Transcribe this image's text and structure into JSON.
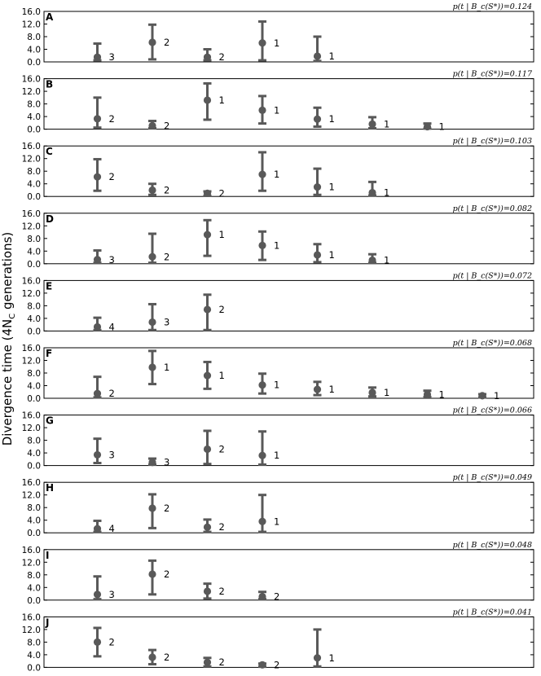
{
  "chart_data": {
    "type": "scatter",
    "ylabel": "Divergence time (4N_C generations)",
    "ylim": [
      0,
      16
    ],
    "yticks": [
      "0.0",
      "4.0",
      "8.0",
      "12.0",
      "16.0"
    ],
    "grid": false,
    "panels": [
      {
        "letter": "A",
        "label": "p(t | B_c(S*))=0.124",
        "points": [
          {
            "x": 1,
            "y": 1.5,
            "lo": 0.5,
            "hi": 5.8,
            "count": "3"
          },
          {
            "x": 2,
            "y": 6.2,
            "lo": 0.8,
            "hi": 11.8,
            "count": "2"
          },
          {
            "x": 3,
            "y": 1.5,
            "lo": 0.5,
            "hi": 4.0,
            "count": "2"
          },
          {
            "x": 4,
            "y": 6.0,
            "lo": 0.5,
            "hi": 12.8,
            "count": "1"
          },
          {
            "x": 5,
            "y": 1.8,
            "lo": 0.3,
            "hi": 8.0,
            "count": "1"
          }
        ]
      },
      {
        "letter": "B",
        "label": "p(t | B_c(S*))=0.117",
        "points": [
          {
            "x": 1,
            "y": 3.3,
            "lo": 0.5,
            "hi": 10.0,
            "count": "2"
          },
          {
            "x": 2,
            "y": 1.1,
            "lo": 0.3,
            "hi": 2.6,
            "count": "2"
          },
          {
            "x": 3,
            "y": 9.2,
            "lo": 3.0,
            "hi": 14.5,
            "count": "1"
          },
          {
            "x": 4,
            "y": 6.0,
            "lo": 1.8,
            "hi": 10.5,
            "count": "1"
          },
          {
            "x": 5,
            "y": 3.2,
            "lo": 0.8,
            "hi": 6.8,
            "count": "1"
          },
          {
            "x": 6,
            "y": 1.6,
            "lo": 0.3,
            "hi": 3.8,
            "count": "1"
          },
          {
            "x": 7,
            "y": 0.8,
            "lo": 0.2,
            "hi": 1.8,
            "count": "1"
          }
        ]
      },
      {
        "letter": "C",
        "label": "p(t | B_c(S*))=0.103",
        "points": [
          {
            "x": 1,
            "y": 6.2,
            "lo": 1.8,
            "hi": 11.8,
            "count": "2"
          },
          {
            "x": 2,
            "y": 2.0,
            "lo": 0.5,
            "hi": 4.0,
            "count": "2"
          },
          {
            "x": 3,
            "y": 1.0,
            "lo": 0.2,
            "hi": 1.6,
            "count": "2"
          },
          {
            "x": 4,
            "y": 7.0,
            "lo": 1.8,
            "hi": 14.0,
            "count": "1"
          },
          {
            "x": 5,
            "y": 3.0,
            "lo": 0.5,
            "hi": 8.8,
            "count": "1"
          },
          {
            "x": 6,
            "y": 1.2,
            "lo": 0.3,
            "hi": 4.6,
            "count": "1"
          }
        ]
      },
      {
        "letter": "D",
        "label": "p(t | B_c(S*))=0.082",
        "points": [
          {
            "x": 1,
            "y": 1.3,
            "lo": 0.3,
            "hi": 4.2,
            "count": "3"
          },
          {
            "x": 2,
            "y": 2.2,
            "lo": 0.3,
            "hi": 9.5,
            "count": "2"
          },
          {
            "x": 3,
            "y": 9.2,
            "lo": 2.5,
            "hi": 13.8,
            "count": "1"
          },
          {
            "x": 4,
            "y": 5.8,
            "lo": 1.2,
            "hi": 10.2,
            "count": "1"
          },
          {
            "x": 5,
            "y": 2.8,
            "lo": 0.5,
            "hi": 6.2,
            "count": "1"
          },
          {
            "x": 6,
            "y": 1.1,
            "lo": 0.3,
            "hi": 3.0,
            "count": "1"
          }
        ]
      },
      {
        "letter": "E",
        "label": "p(t | B_c(S*))=0.072",
        "points": [
          {
            "x": 1,
            "y": 1.3,
            "lo": 0.3,
            "hi": 4.2,
            "count": "4"
          },
          {
            "x": 2,
            "y": 2.8,
            "lo": 0.3,
            "hi": 8.5,
            "count": "3"
          },
          {
            "x": 3,
            "y": 6.8,
            "lo": 0.3,
            "hi": 11.5,
            "count": "2"
          }
        ]
      },
      {
        "letter": "F",
        "label": "p(t | B_c(S*))=0.068",
        "points": [
          {
            "x": 1,
            "y": 1.5,
            "lo": 0.3,
            "hi": 6.8,
            "count": "2"
          },
          {
            "x": 2,
            "y": 9.8,
            "lo": 4.5,
            "hi": 15.0,
            "count": "1"
          },
          {
            "x": 3,
            "y": 7.2,
            "lo": 3.0,
            "hi": 11.5,
            "count": "1"
          },
          {
            "x": 4,
            "y": 4.2,
            "lo": 1.5,
            "hi": 7.8,
            "count": "1"
          },
          {
            "x": 5,
            "y": 2.8,
            "lo": 1.0,
            "hi": 5.2,
            "count": "1"
          },
          {
            "x": 6,
            "y": 1.8,
            "lo": 0.6,
            "hi": 3.4,
            "count": "1"
          },
          {
            "x": 7,
            "y": 1.2,
            "lo": 0.4,
            "hi": 2.4,
            "count": "1"
          },
          {
            "x": 8,
            "y": 0.8,
            "lo": 0.3,
            "hi": 1.3,
            "count": "1"
          }
        ]
      },
      {
        "letter": "G",
        "label": "p(t | B_c(S*))=0.066",
        "points": [
          {
            "x": 1,
            "y": 3.4,
            "lo": 0.8,
            "hi": 8.5,
            "count": "3"
          },
          {
            "x": 2,
            "y": 1.0,
            "lo": 0.3,
            "hi": 2.2,
            "count": "3"
          },
          {
            "x": 3,
            "y": 5.2,
            "lo": 0.5,
            "hi": 11.0,
            "count": "2"
          },
          {
            "x": 4,
            "y": 3.2,
            "lo": 0.3,
            "hi": 10.8,
            "count": "1"
          }
        ]
      },
      {
        "letter": "H",
        "label": "p(t | B_c(S*))=0.049",
        "points": [
          {
            "x": 1,
            "y": 1.3,
            "lo": 0.3,
            "hi": 3.8,
            "count": "4"
          },
          {
            "x": 2,
            "y": 7.8,
            "lo": 1.5,
            "hi": 12.2,
            "count": "2"
          },
          {
            "x": 3,
            "y": 1.8,
            "lo": 0.3,
            "hi": 4.2,
            "count": "2"
          },
          {
            "x": 4,
            "y": 3.6,
            "lo": 0.3,
            "hi": 12.0,
            "count": "1"
          }
        ]
      },
      {
        "letter": "I",
        "label": "p(t | B_c(S*))=0.048",
        "points": [
          {
            "x": 1,
            "y": 1.8,
            "lo": 0.3,
            "hi": 7.5,
            "count": "3"
          },
          {
            "x": 2,
            "y": 8.2,
            "lo": 1.8,
            "hi": 12.5,
            "count": "2"
          },
          {
            "x": 3,
            "y": 2.8,
            "lo": 0.5,
            "hi": 5.2,
            "count": "2"
          },
          {
            "x": 4,
            "y": 1.1,
            "lo": 0.3,
            "hi": 2.6,
            "count": "2"
          }
        ]
      },
      {
        "letter": "J",
        "label": "p(t | B_c(S*))=0.041",
        "points": [
          {
            "x": 1,
            "y": 8.0,
            "lo": 3.5,
            "hi": 12.5,
            "count": "2"
          },
          {
            "x": 2,
            "y": 3.2,
            "lo": 1.0,
            "hi": 5.5,
            "count": "2"
          },
          {
            "x": 3,
            "y": 1.6,
            "lo": 0.3,
            "hi": 3.0,
            "count": "2"
          },
          {
            "x": 4,
            "y": 0.8,
            "lo": 0.2,
            "hi": 1.2,
            "count": "2"
          },
          {
            "x": 5,
            "y": 3.0,
            "lo": 0.3,
            "hi": 12.0,
            "count": "1"
          }
        ]
      }
    ]
  },
  "colors": {
    "point": "#595959",
    "frame": "#000000"
  }
}
